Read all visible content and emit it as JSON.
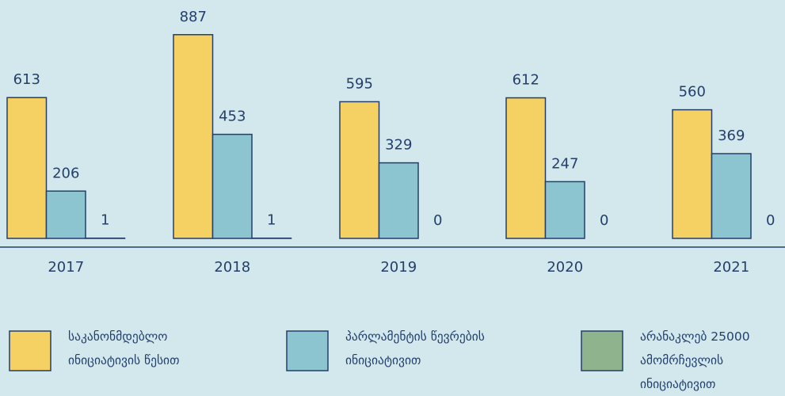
{
  "chart_data": {
    "type": "bar",
    "categories": [
      "2017",
      "2018",
      "2019",
      "2020",
      "2021"
    ],
    "series": [
      {
        "name": "საკანონმდებლო ინიციატივის წესით",
        "color": "#f5d062",
        "values": [
          613,
          887,
          595,
          612,
          560
        ]
      },
      {
        "name": "პარლამენტის წევრების ინიციატივით",
        "color": "#8cc4d0",
        "values": [
          206,
          453,
          329,
          247,
          369
        ]
      },
      {
        "name": "არანაკლებ 25000 ამომრჩევლის ინიციატივით",
        "color": "#8fb38c",
        "values": [
          1,
          1,
          0,
          0,
          0
        ]
      }
    ],
    "ylim": [
      0,
      900
    ]
  }
}
